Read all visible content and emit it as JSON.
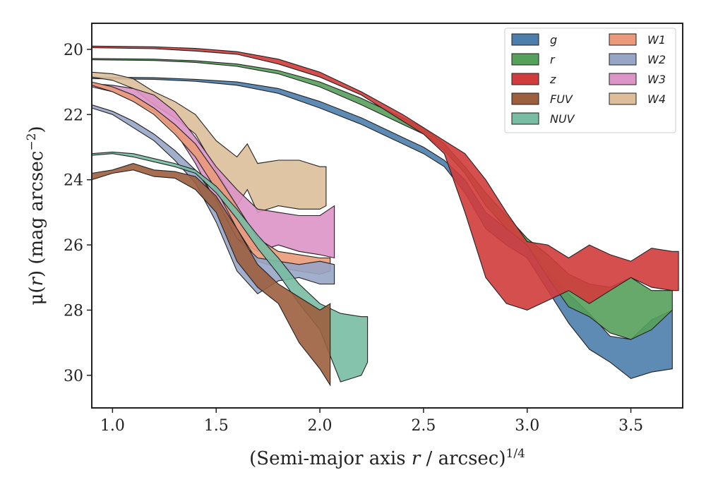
{
  "chart_data": {
    "type": "area",
    "xlabel": {
      "main": "(Semi-major axis ",
      "var": "r",
      "unit": " / arcsec)",
      "exp": "1/4"
    },
    "ylabel": {
      "mu": "μ(",
      "var": "r",
      "unit": ") (mag arcsec",
      "exp": "−2",
      "close": ")"
    },
    "xlim": [
      0.9,
      3.75
    ],
    "ylim": [
      31.0,
      19.2
    ],
    "y_inverted": true,
    "x_ticks": [
      1.0,
      1.5,
      2.0,
      2.5,
      3.0,
      3.5
    ],
    "x_tick_labels": [
      "1.0",
      "1.5",
      "2.0",
      "2.5",
      "3.0",
      "3.5"
    ],
    "y_ticks": [
      20,
      22,
      24,
      26,
      28,
      30
    ],
    "y_tick_labels": [
      "20",
      "22",
      "24",
      "26",
      "28",
      "30"
    ],
    "grid": false,
    "legend_position": "top-right",
    "legend_columns": 2,
    "series": [
      {
        "name": "g",
        "color": "#4c7eac",
        "x": [
          0.9,
          1.2,
          1.4,
          1.6,
          1.8,
          2.0,
          2.2,
          2.4,
          2.5,
          2.6,
          2.7,
          2.8,
          2.9,
          3.0,
          3.1,
          3.2,
          3.3,
          3.4,
          3.5,
          3.6,
          3.7
        ],
        "lo": [
          20.85,
          20.87,
          20.92,
          21.0,
          21.2,
          21.6,
          22.1,
          22.7,
          23.0,
          23.4,
          24.0,
          25.0,
          25.5,
          26.0,
          26.8,
          27.5,
          28.1,
          28.8,
          28.9,
          28.3,
          28.0
        ],
        "hi": [
          20.9,
          20.92,
          20.98,
          21.1,
          21.35,
          21.8,
          22.3,
          22.9,
          23.2,
          23.6,
          24.4,
          25.5,
          26.0,
          26.4,
          27.4,
          28.4,
          29.2,
          29.6,
          30.1,
          29.9,
          29.8
        ]
      },
      {
        "name": "r",
        "color": "#55a05a",
        "x": [
          0.9,
          1.2,
          1.4,
          1.6,
          1.8,
          2.0,
          2.2,
          2.4,
          2.5,
          2.6,
          2.7,
          2.8,
          2.9,
          3.0,
          3.1,
          3.2,
          3.3,
          3.4,
          3.5,
          3.6,
          3.7
        ],
        "lo": [
          20.28,
          20.3,
          20.35,
          20.45,
          20.65,
          21.0,
          21.5,
          22.1,
          22.4,
          22.9,
          23.6,
          24.4,
          25.1,
          25.8,
          26.3,
          26.9,
          27.2,
          27.3,
          27.0,
          27.4,
          27.4
        ],
        "hi": [
          20.32,
          20.34,
          20.4,
          20.52,
          20.75,
          21.15,
          21.7,
          22.3,
          22.6,
          23.1,
          23.8,
          24.8,
          25.5,
          26.0,
          27.0,
          27.9,
          28.2,
          28.7,
          28.9,
          28.6,
          28.0
        ]
      },
      {
        "name": "z",
        "color": "#d13c3c",
        "x": [
          0.9,
          1.2,
          1.4,
          1.6,
          1.8,
          2.0,
          2.2,
          2.4,
          2.5,
          2.6,
          2.7,
          2.8,
          2.9,
          3.0,
          3.1,
          3.2,
          3.3,
          3.4,
          3.5,
          3.6,
          3.7,
          3.73
        ],
        "lo": [
          19.9,
          19.92,
          19.97,
          20.07,
          20.3,
          20.7,
          21.3,
          22.0,
          22.4,
          22.8,
          23.2,
          24.0,
          25.0,
          25.9,
          26.0,
          26.4,
          26.0,
          26.3,
          26.5,
          26.1,
          26.2,
          26.2
        ],
        "hi": [
          19.95,
          19.98,
          20.05,
          20.15,
          20.45,
          20.85,
          21.4,
          22.2,
          22.6,
          23.2,
          25.0,
          27.0,
          27.8,
          28.0,
          27.7,
          27.4,
          27.8,
          27.4,
          27.0,
          27.3,
          27.4,
          27.4
        ]
      },
      {
        "name": "FUV",
        "color": "#9c5f3f",
        "x": [
          0.9,
          1.0,
          1.1,
          1.2,
          1.3,
          1.4,
          1.5,
          1.6,
          1.7,
          1.8,
          1.9,
          2.0,
          2.05
        ],
        "lo": [
          23.8,
          23.7,
          23.5,
          23.7,
          23.75,
          23.9,
          24.5,
          25.5,
          26.6,
          27.2,
          27.6,
          28.0,
          27.8
        ],
        "hi": [
          24.0,
          23.8,
          23.7,
          23.9,
          23.95,
          24.3,
          25.0,
          26.5,
          27.3,
          27.8,
          29.0,
          29.8,
          30.3
        ]
      },
      {
        "name": "NUV",
        "color": "#78bca4",
        "x": [
          0.9,
          1.0,
          1.1,
          1.2,
          1.3,
          1.4,
          1.5,
          1.6,
          1.7,
          1.8,
          1.9,
          2.0,
          2.1,
          2.2,
          2.23
        ],
        "lo": [
          23.2,
          23.15,
          23.2,
          23.35,
          23.5,
          23.7,
          24.2,
          24.9,
          25.7,
          26.4,
          27.2,
          27.8,
          28.1,
          28.2,
          28.2
        ],
        "hi": [
          23.25,
          23.2,
          23.3,
          23.45,
          23.6,
          23.8,
          24.4,
          25.2,
          26.1,
          26.9,
          27.8,
          28.6,
          30.2,
          30.0,
          29.6
        ]
      },
      {
        "name": "W1",
        "color": "#ea9a7a",
        "x": [
          0.9,
          1.0,
          1.1,
          1.2,
          1.3,
          1.4,
          1.5,
          1.6,
          1.7,
          1.8,
          1.9,
          2.0,
          2.05
        ],
        "lo": [
          21.0,
          21.15,
          21.4,
          21.8,
          22.3,
          22.9,
          23.8,
          24.8,
          25.8,
          26.2,
          26.3,
          26.4,
          26.4
        ],
        "hi": [
          21.1,
          21.3,
          21.6,
          22.0,
          22.6,
          23.3,
          24.3,
          25.5,
          26.5,
          26.7,
          26.8,
          26.9,
          26.8
        ]
      },
      {
        "name": "W2",
        "color": "#97a5c7",
        "x": [
          0.9,
          1.0,
          1.1,
          1.2,
          1.3,
          1.4,
          1.5,
          1.6,
          1.7,
          1.8,
          1.9,
          2.0,
          2.07
        ],
        "lo": [
          21.7,
          21.9,
          22.2,
          22.6,
          23.1,
          23.7,
          24.6,
          25.8,
          26.4,
          26.5,
          26.6,
          26.5,
          26.6
        ],
        "hi": [
          21.8,
          22.0,
          22.4,
          22.8,
          23.4,
          24.1,
          25.3,
          26.8,
          27.5,
          27.1,
          27.0,
          27.2,
          27.2
        ]
      },
      {
        "name": "W3",
        "color": "#dd94c6",
        "x": [
          0.9,
          1.0,
          1.1,
          1.2,
          1.3,
          1.4,
          1.5,
          1.6,
          1.7,
          1.8,
          1.9,
          2.0,
          2.07
        ],
        "lo": [
          21.05,
          21.1,
          21.2,
          21.4,
          21.9,
          22.7,
          23.6,
          24.3,
          24.9,
          25.0,
          25.1,
          25.1,
          24.8
        ],
        "hi": [
          21.15,
          21.3,
          21.6,
          21.9,
          22.5,
          23.5,
          24.7,
          25.8,
          26.2,
          26.0,
          26.2,
          26.3,
          26.4
        ]
      },
      {
        "name": "W4",
        "color": "#dcbf9a",
        "x": [
          0.9,
          1.0,
          1.1,
          1.2,
          1.3,
          1.4,
          1.5,
          1.6,
          1.65,
          1.7,
          1.8,
          1.9,
          2.0,
          2.03
        ],
        "lo": [
          20.7,
          20.75,
          20.9,
          21.3,
          21.6,
          22.0,
          22.8,
          23.3,
          22.9,
          23.5,
          23.4,
          23.4,
          23.6,
          23.6
        ],
        "hi": [
          20.85,
          20.95,
          21.2,
          21.7,
          22.1,
          22.6,
          23.7,
          24.8,
          24.3,
          25.0,
          24.8,
          24.9,
          24.9,
          24.8
        ]
      }
    ]
  }
}
